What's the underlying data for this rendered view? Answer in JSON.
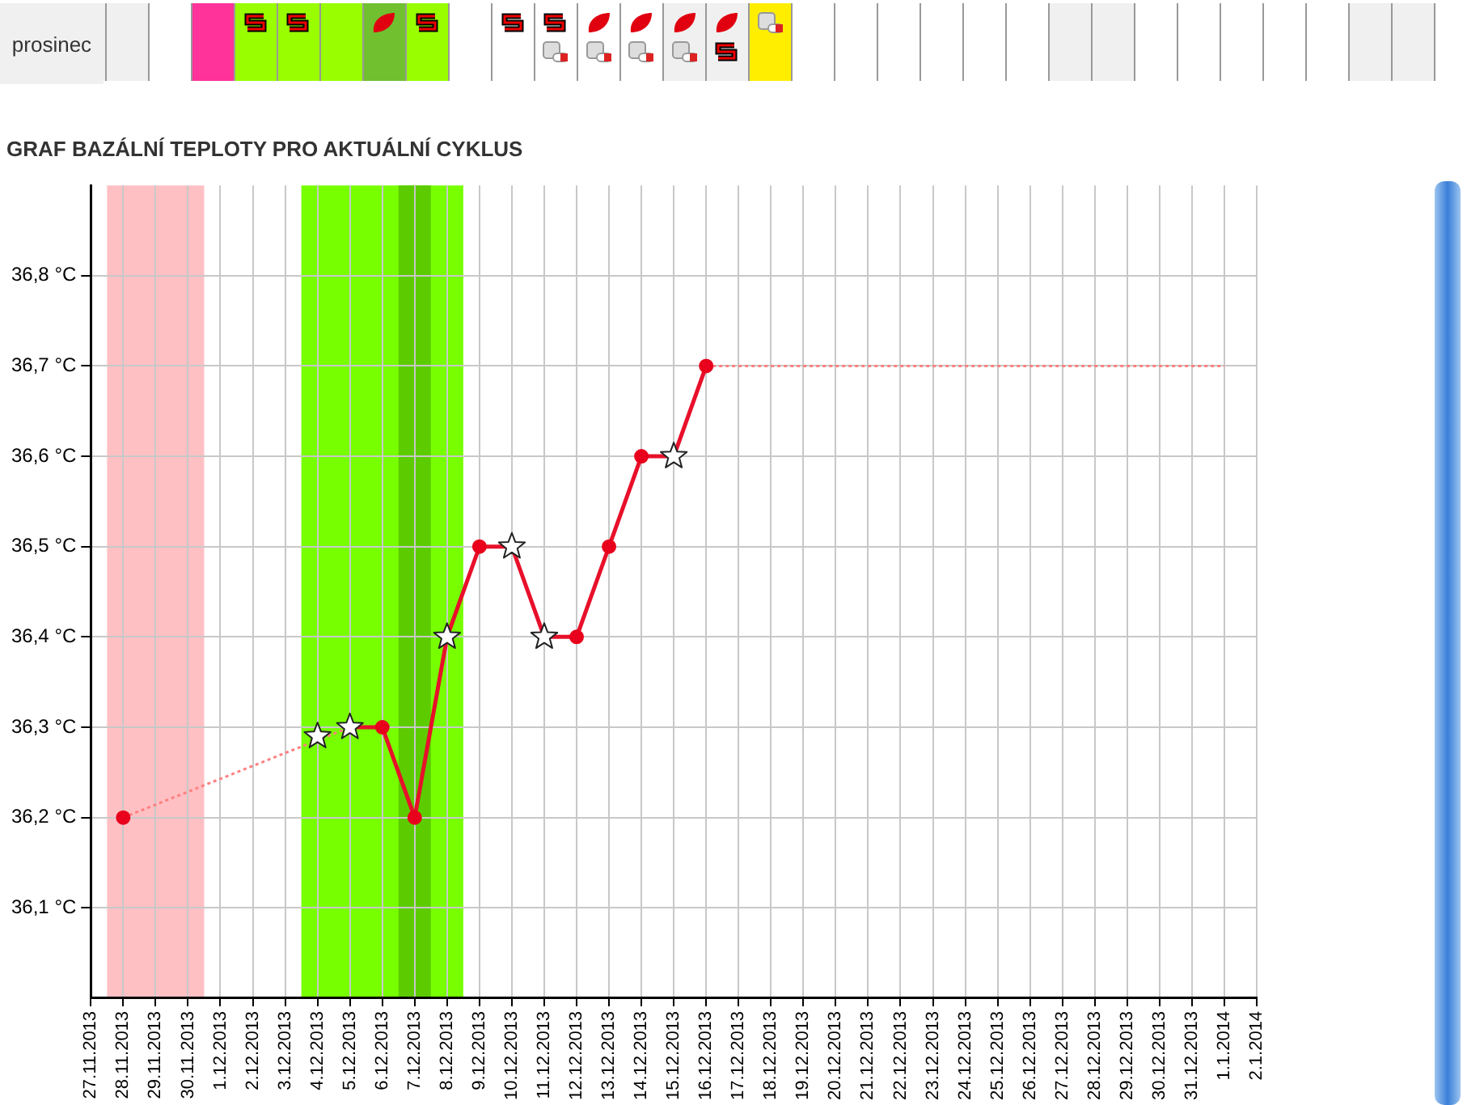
{
  "chart_data": {
    "type": "line",
    "title": "GRAF BAZÁLNÍ TEPLOTY PRO AKTUÁLNÍ CYKLUS",
    "annotations": [
      "prosinec"
    ],
    "categories": [
      "27.11.2013",
      "28.11.2013",
      "29.11.2013",
      "30.11.2013",
      "1.12.2013",
      "2.12.2013",
      "3.12.2013",
      "4.12.2013",
      "5.12.2013",
      "6.12.2013",
      "7.12.2013",
      "8.12.2013",
      "9.12.2013",
      "10.12.2013",
      "11.12.2013",
      "12.12.2013",
      "13.12.2013",
      "14.12.2013",
      "15.12.2013",
      "16.12.2013",
      "17.12.2013",
      "18.12.2013",
      "19.12.2013",
      "20.12.2013",
      "21.12.2013",
      "22.12.2013",
      "23.12.2013",
      "24.12.2013",
      "25.12.2013",
      "26.12.2013",
      "27.12.2013",
      "28.12.2013",
      "29.12.2013",
      "30.12.2013",
      "31.12.2013",
      "1.1.2014",
      "2.1.2014"
    ],
    "series": [
      {
        "type": "line",
        "color": "#ff8080",
        "line_style": "dotted",
        "marker": "none",
        "x": [
          "28.11.2013",
          "5.12.2013"
        ],
        "values": [
          36.2,
          36.3
        ]
      },
      {
        "type": "line",
        "color": "#ff8080",
        "line_style": "dotted",
        "marker": "none",
        "x": [
          "16.12.2013",
          "1.1.2014"
        ],
        "values": [
          36.7,
          36.7
        ]
      },
      {
        "type": "line",
        "color": "#e8102a",
        "line_style": "solid",
        "marker": "none",
        "x": [
          "5.12.2013",
          "6.12.2013",
          "7.12.2013",
          "8.12.2013",
          "9.12.2013",
          "10.12.2013",
          "11.12.2013",
          "12.12.2013",
          "13.12.2013",
          "14.12.2013",
          "15.12.2013",
          "16.12.2013"
        ],
        "values": [
          36.3,
          36.3,
          36.2,
          36.4,
          36.5,
          36.5,
          36.4,
          36.4,
          36.5,
          36.6,
          36.6,
          36.7
        ]
      },
      {
        "type": "scatter",
        "color": "#e8001c",
        "marker": "circle",
        "x": [
          "28.11.2013",
          "6.12.2013",
          "7.12.2013",
          "9.12.2013",
          "12.12.2013",
          "13.12.2013",
          "14.12.2013",
          "16.12.2013"
        ],
        "values": [
          36.2,
          36.3,
          36.2,
          36.5,
          36.4,
          36.5,
          36.6,
          36.7
        ]
      },
      {
        "type": "scatter",
        "color": "#222222",
        "marker": "star",
        "x": [
          "4.12.2013",
          "5.12.2013",
          "8.12.2013",
          "10.12.2013",
          "11.12.2013",
          "15.12.2013"
        ],
        "values": [
          36.29,
          36.3,
          36.4,
          36.5,
          36.4,
          36.6
        ]
      }
    ],
    "bands": [
      {
        "axis": "x",
        "from": "28.11.2013",
        "to": "30.11.2013",
        "color": "#ffc0c4"
      },
      {
        "axis": "x",
        "from": "4.12.2013",
        "to": "8.12.2013",
        "color": "#77ff00"
      },
      {
        "axis": "x",
        "from": "7.12.2013",
        "to": "7.12.2013",
        "color": "#5ccc00"
      }
    ],
    "ylim": [
      36.0,
      36.9
    ],
    "yticks": [
      {
        "value": 36.1,
        "label": "36,1 °C"
      },
      {
        "value": 36.2,
        "label": "36,2 °C"
      },
      {
        "value": 36.3,
        "label": "36,3 °C"
      },
      {
        "value": 36.4,
        "label": "36,4 °C"
      },
      {
        "value": 36.5,
        "label": "36,5 °C"
      },
      {
        "value": 36.6,
        "label": "36,6 °C"
      },
      {
        "value": 36.7,
        "label": "36,7 °C"
      },
      {
        "value": 36.8,
        "label": "36,8 °C"
      }
    ],
    "grid": true,
    "legend": false
  }
}
